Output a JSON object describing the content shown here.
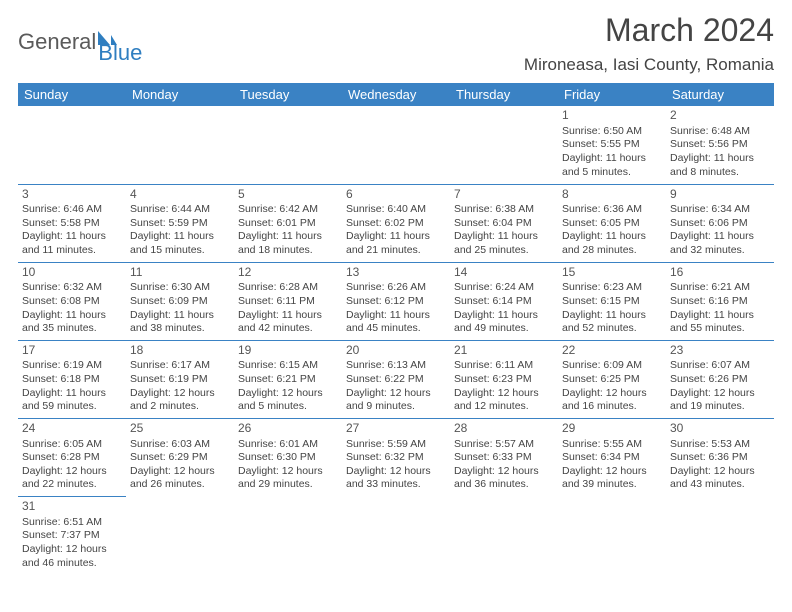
{
  "logo": {
    "text1": "General",
    "text2": "Blue"
  },
  "title": "March 2024",
  "location": "Mironeasa, Iasi County, Romania",
  "colors": {
    "header_bg": "#3a82c4",
    "header_fg": "#ffffff",
    "border": "#3a82c4",
    "text": "#444444",
    "logo_gray": "#5a5a5a",
    "logo_blue": "#2f7ec0"
  },
  "daysOfWeek": [
    "Sunday",
    "Monday",
    "Tuesday",
    "Wednesday",
    "Thursday",
    "Friday",
    "Saturday"
  ],
  "weeks": [
    [
      null,
      null,
      null,
      null,
      null,
      {
        "n": "1",
        "sr": "Sunrise: 6:50 AM",
        "ss": "Sunset: 5:55 PM",
        "d1": "Daylight: 11 hours",
        "d2": "and 5 minutes."
      },
      {
        "n": "2",
        "sr": "Sunrise: 6:48 AM",
        "ss": "Sunset: 5:56 PM",
        "d1": "Daylight: 11 hours",
        "d2": "and 8 minutes."
      }
    ],
    [
      {
        "n": "3",
        "sr": "Sunrise: 6:46 AM",
        "ss": "Sunset: 5:58 PM",
        "d1": "Daylight: 11 hours",
        "d2": "and 11 minutes."
      },
      {
        "n": "4",
        "sr": "Sunrise: 6:44 AM",
        "ss": "Sunset: 5:59 PM",
        "d1": "Daylight: 11 hours",
        "d2": "and 15 minutes."
      },
      {
        "n": "5",
        "sr": "Sunrise: 6:42 AM",
        "ss": "Sunset: 6:01 PM",
        "d1": "Daylight: 11 hours",
        "d2": "and 18 minutes."
      },
      {
        "n": "6",
        "sr": "Sunrise: 6:40 AM",
        "ss": "Sunset: 6:02 PM",
        "d1": "Daylight: 11 hours",
        "d2": "and 21 minutes."
      },
      {
        "n": "7",
        "sr": "Sunrise: 6:38 AM",
        "ss": "Sunset: 6:04 PM",
        "d1": "Daylight: 11 hours",
        "d2": "and 25 minutes."
      },
      {
        "n": "8",
        "sr": "Sunrise: 6:36 AM",
        "ss": "Sunset: 6:05 PM",
        "d1": "Daylight: 11 hours",
        "d2": "and 28 minutes."
      },
      {
        "n": "9",
        "sr": "Sunrise: 6:34 AM",
        "ss": "Sunset: 6:06 PM",
        "d1": "Daylight: 11 hours",
        "d2": "and 32 minutes."
      }
    ],
    [
      {
        "n": "10",
        "sr": "Sunrise: 6:32 AM",
        "ss": "Sunset: 6:08 PM",
        "d1": "Daylight: 11 hours",
        "d2": "and 35 minutes."
      },
      {
        "n": "11",
        "sr": "Sunrise: 6:30 AM",
        "ss": "Sunset: 6:09 PM",
        "d1": "Daylight: 11 hours",
        "d2": "and 38 minutes."
      },
      {
        "n": "12",
        "sr": "Sunrise: 6:28 AM",
        "ss": "Sunset: 6:11 PM",
        "d1": "Daylight: 11 hours",
        "d2": "and 42 minutes."
      },
      {
        "n": "13",
        "sr": "Sunrise: 6:26 AM",
        "ss": "Sunset: 6:12 PM",
        "d1": "Daylight: 11 hours",
        "d2": "and 45 minutes."
      },
      {
        "n": "14",
        "sr": "Sunrise: 6:24 AM",
        "ss": "Sunset: 6:14 PM",
        "d1": "Daylight: 11 hours",
        "d2": "and 49 minutes."
      },
      {
        "n": "15",
        "sr": "Sunrise: 6:23 AM",
        "ss": "Sunset: 6:15 PM",
        "d1": "Daylight: 11 hours",
        "d2": "and 52 minutes."
      },
      {
        "n": "16",
        "sr": "Sunrise: 6:21 AM",
        "ss": "Sunset: 6:16 PM",
        "d1": "Daylight: 11 hours",
        "d2": "and 55 minutes."
      }
    ],
    [
      {
        "n": "17",
        "sr": "Sunrise: 6:19 AM",
        "ss": "Sunset: 6:18 PM",
        "d1": "Daylight: 11 hours",
        "d2": "and 59 minutes."
      },
      {
        "n": "18",
        "sr": "Sunrise: 6:17 AM",
        "ss": "Sunset: 6:19 PM",
        "d1": "Daylight: 12 hours",
        "d2": "and 2 minutes."
      },
      {
        "n": "19",
        "sr": "Sunrise: 6:15 AM",
        "ss": "Sunset: 6:21 PM",
        "d1": "Daylight: 12 hours",
        "d2": "and 5 minutes."
      },
      {
        "n": "20",
        "sr": "Sunrise: 6:13 AM",
        "ss": "Sunset: 6:22 PM",
        "d1": "Daylight: 12 hours",
        "d2": "and 9 minutes."
      },
      {
        "n": "21",
        "sr": "Sunrise: 6:11 AM",
        "ss": "Sunset: 6:23 PM",
        "d1": "Daylight: 12 hours",
        "d2": "and 12 minutes."
      },
      {
        "n": "22",
        "sr": "Sunrise: 6:09 AM",
        "ss": "Sunset: 6:25 PM",
        "d1": "Daylight: 12 hours",
        "d2": "and 16 minutes."
      },
      {
        "n": "23",
        "sr": "Sunrise: 6:07 AM",
        "ss": "Sunset: 6:26 PM",
        "d1": "Daylight: 12 hours",
        "d2": "and 19 minutes."
      }
    ],
    [
      {
        "n": "24",
        "sr": "Sunrise: 6:05 AM",
        "ss": "Sunset: 6:28 PM",
        "d1": "Daylight: 12 hours",
        "d2": "and 22 minutes."
      },
      {
        "n": "25",
        "sr": "Sunrise: 6:03 AM",
        "ss": "Sunset: 6:29 PM",
        "d1": "Daylight: 12 hours",
        "d2": "and 26 minutes."
      },
      {
        "n": "26",
        "sr": "Sunrise: 6:01 AM",
        "ss": "Sunset: 6:30 PM",
        "d1": "Daylight: 12 hours",
        "d2": "and 29 minutes."
      },
      {
        "n": "27",
        "sr": "Sunrise: 5:59 AM",
        "ss": "Sunset: 6:32 PM",
        "d1": "Daylight: 12 hours",
        "d2": "and 33 minutes."
      },
      {
        "n": "28",
        "sr": "Sunrise: 5:57 AM",
        "ss": "Sunset: 6:33 PM",
        "d1": "Daylight: 12 hours",
        "d2": "and 36 minutes."
      },
      {
        "n": "29",
        "sr": "Sunrise: 5:55 AM",
        "ss": "Sunset: 6:34 PM",
        "d1": "Daylight: 12 hours",
        "d2": "and 39 minutes."
      },
      {
        "n": "30",
        "sr": "Sunrise: 5:53 AM",
        "ss": "Sunset: 6:36 PM",
        "d1": "Daylight: 12 hours",
        "d2": "and 43 minutes."
      }
    ],
    [
      {
        "n": "31",
        "sr": "Sunrise: 6:51 AM",
        "ss": "Sunset: 7:37 PM",
        "d1": "Daylight: 12 hours",
        "d2": "and 46 minutes."
      },
      null,
      null,
      null,
      null,
      null,
      null
    ]
  ]
}
